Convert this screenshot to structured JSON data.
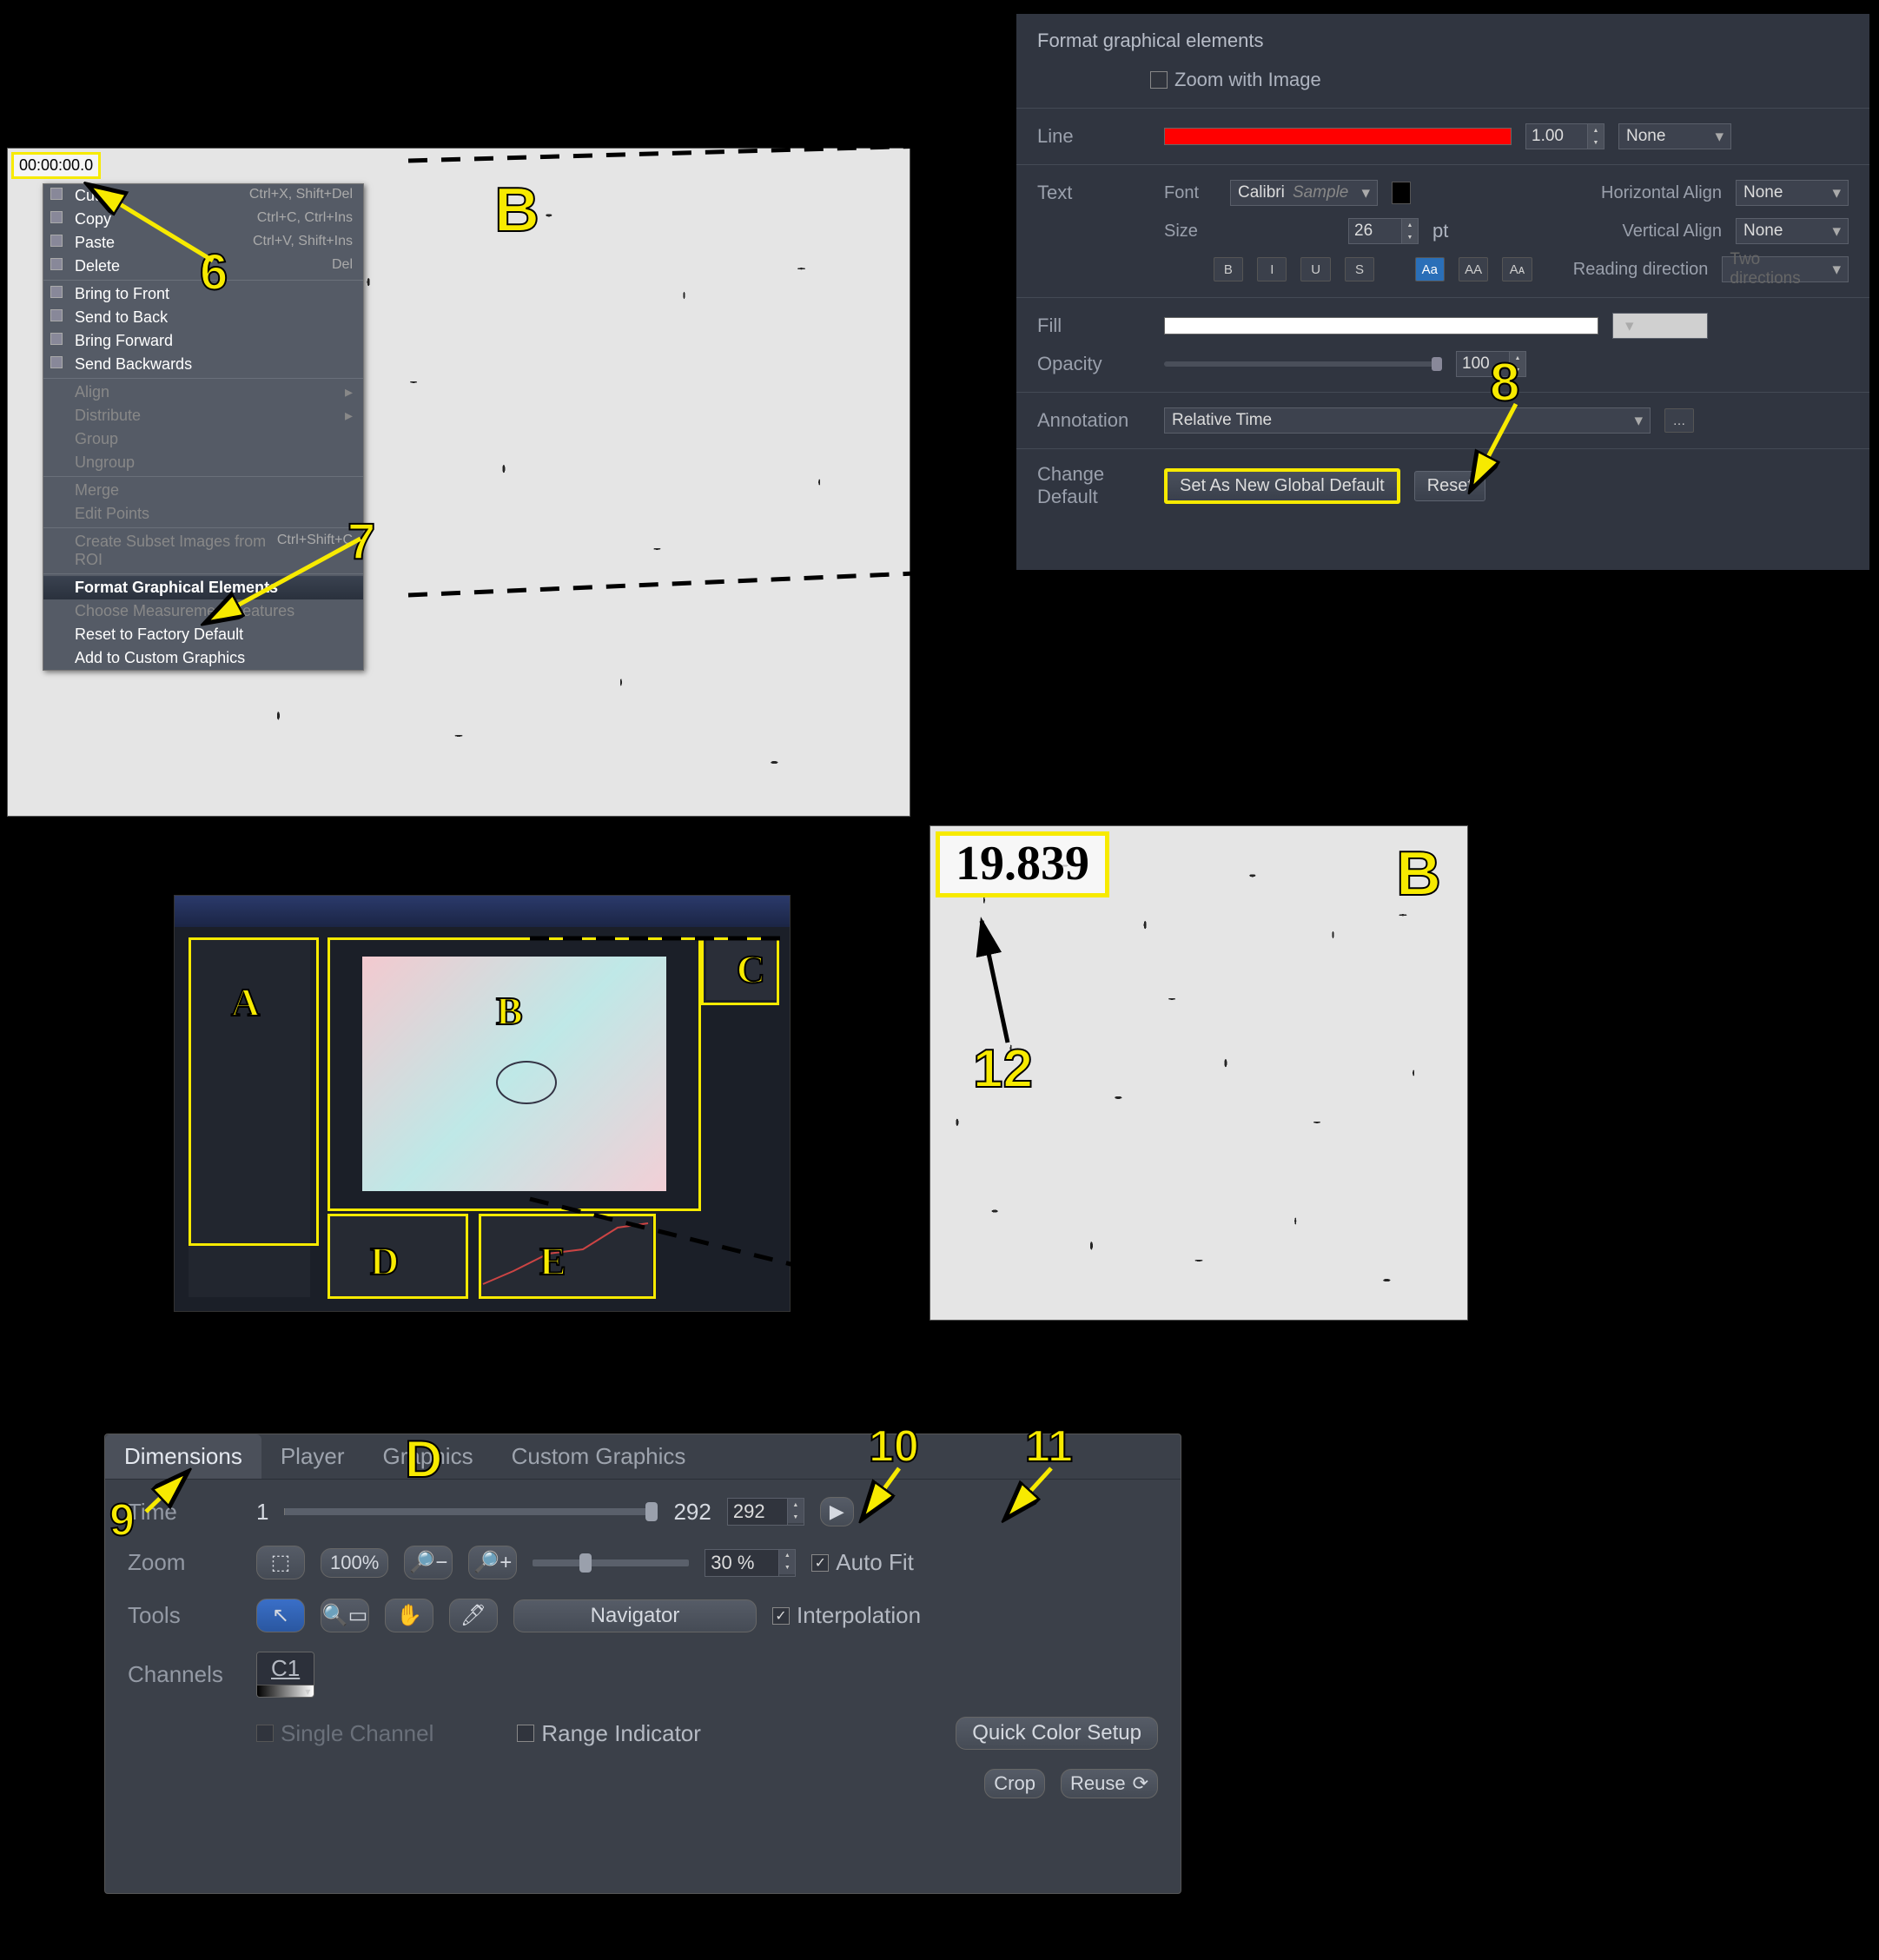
{
  "context_menu": {
    "panel_label": "B",
    "timestamp_overlay": "00:00:00.0",
    "items": [
      {
        "label": "Cut",
        "shortcut": "Ctrl+X, Shift+Del",
        "enabled": true,
        "icon": "cut"
      },
      {
        "label": "Copy",
        "shortcut": "Ctrl+C, Ctrl+Ins",
        "enabled": true,
        "icon": "copy"
      },
      {
        "label": "Paste",
        "shortcut": "Ctrl+V, Shift+Ins",
        "enabled": true,
        "icon": "paste"
      },
      {
        "label": "Delete",
        "shortcut": "Del",
        "enabled": true,
        "icon": "delete"
      },
      {
        "sep": true
      },
      {
        "label": "Bring to Front",
        "enabled": true,
        "icon": "layer-front"
      },
      {
        "label": "Send to Back",
        "enabled": true,
        "icon": "layer-back"
      },
      {
        "label": "Bring Forward",
        "enabled": true,
        "icon": "layer-fwd"
      },
      {
        "label": "Send Backwards",
        "enabled": true,
        "icon": "layer-bwd"
      },
      {
        "sep": true
      },
      {
        "label": "Align",
        "submenu": true,
        "enabled": false
      },
      {
        "label": "Distribute",
        "submenu": true,
        "enabled": false
      },
      {
        "label": "Group",
        "enabled": false
      },
      {
        "label": "Ungroup",
        "enabled": false
      },
      {
        "sep": true
      },
      {
        "label": "Merge",
        "enabled": false
      },
      {
        "label": "Edit Points",
        "enabled": false
      },
      {
        "sep": true
      },
      {
        "label": "Create Subset Images from ROI",
        "shortcut": "Ctrl+Shift+C",
        "enabled": false
      },
      {
        "sep": true
      },
      {
        "label": "Format Graphical Elements",
        "enabled": true,
        "highlight": true
      },
      {
        "label": "Choose Measurement Features",
        "enabled": false
      },
      {
        "label": "Reset to Factory Default",
        "enabled": true
      },
      {
        "label": "Add to Custom Graphics",
        "enabled": true
      }
    ],
    "anno6": "6",
    "anno7": "7"
  },
  "format_panel": {
    "title": "Format graphical elements",
    "zoom_with_image": {
      "label": "Zoom with Image",
      "checked": false
    },
    "line": {
      "label": "Line",
      "color": "#ff0000",
      "width": "1.00",
      "style": "None"
    },
    "text": {
      "label": "Text",
      "font_label": "Font",
      "font": "Calibri",
      "sample": "Sample",
      "sample_color": "#000000",
      "halign_label": "Horizontal Align",
      "halign": "None",
      "size_label": "Size",
      "size": "26",
      "unit": "pt",
      "valign_label": "Vertical Align",
      "valign": "None",
      "reading_label": "Reading direction",
      "reading": "Two directions",
      "style_B": "B",
      "style_I": "I",
      "style_U": "U",
      "style_S": "S",
      "case_Aa": "Aa",
      "case_AA": "AA",
      "case_aa": "Aᴀ"
    },
    "fill": {
      "label": "Fill",
      "color": "#ffffff",
      "picker": "#d0d0d0"
    },
    "opacity": {
      "label": "Opacity",
      "value": "100"
    },
    "annotation": {
      "label": "Annotation",
      "value": "Relative Time"
    },
    "change_default": {
      "label": "Change Default",
      "set": "Set As New Global Default",
      "reset": "Reset"
    },
    "anno8": "8"
  },
  "overview": {
    "regions": {
      "A": "A",
      "B": "B",
      "C": "C",
      "D": "D",
      "E": "E"
    }
  },
  "timestamp_view": {
    "value": "19.839",
    "panel_label": "B",
    "anno12": "12"
  },
  "dimensions": {
    "panel_label": "D",
    "tabs": [
      "Dimensions",
      "Player",
      "Graphics",
      "Custom Graphics"
    ],
    "active_tab": 0,
    "time": {
      "label": "Time",
      "min": "1",
      "max": "292",
      "value": "292"
    },
    "zoom": {
      "label": "Zoom",
      "fit_icon": "⛶",
      "zoom_100": "100%",
      "zoom_out": "−",
      "zoom_in": "+",
      "value": "30 %",
      "autofit_label": "Auto Fit",
      "autofit": true
    },
    "tools": {
      "label": "Tools",
      "navigator": "Navigator",
      "interp_label": "Interpolation",
      "interp": true
    },
    "channels": {
      "label": "Channels",
      "chan": "C1",
      "single": "Single Channel",
      "single_checked": false,
      "range": "Range Indicator",
      "range_checked": false,
      "quick": "Quick Color Setup"
    },
    "crop": "Crop",
    "reuse": "Reuse",
    "anno9": "9",
    "anno10": "10",
    "anno11": "11"
  },
  "colors": {
    "annotation": "#f7ea00",
    "panel_bg": "#303540",
    "panel_bg2": "#3b4049",
    "line_red": "#ff0000",
    "fill_white": "#ffffff"
  }
}
